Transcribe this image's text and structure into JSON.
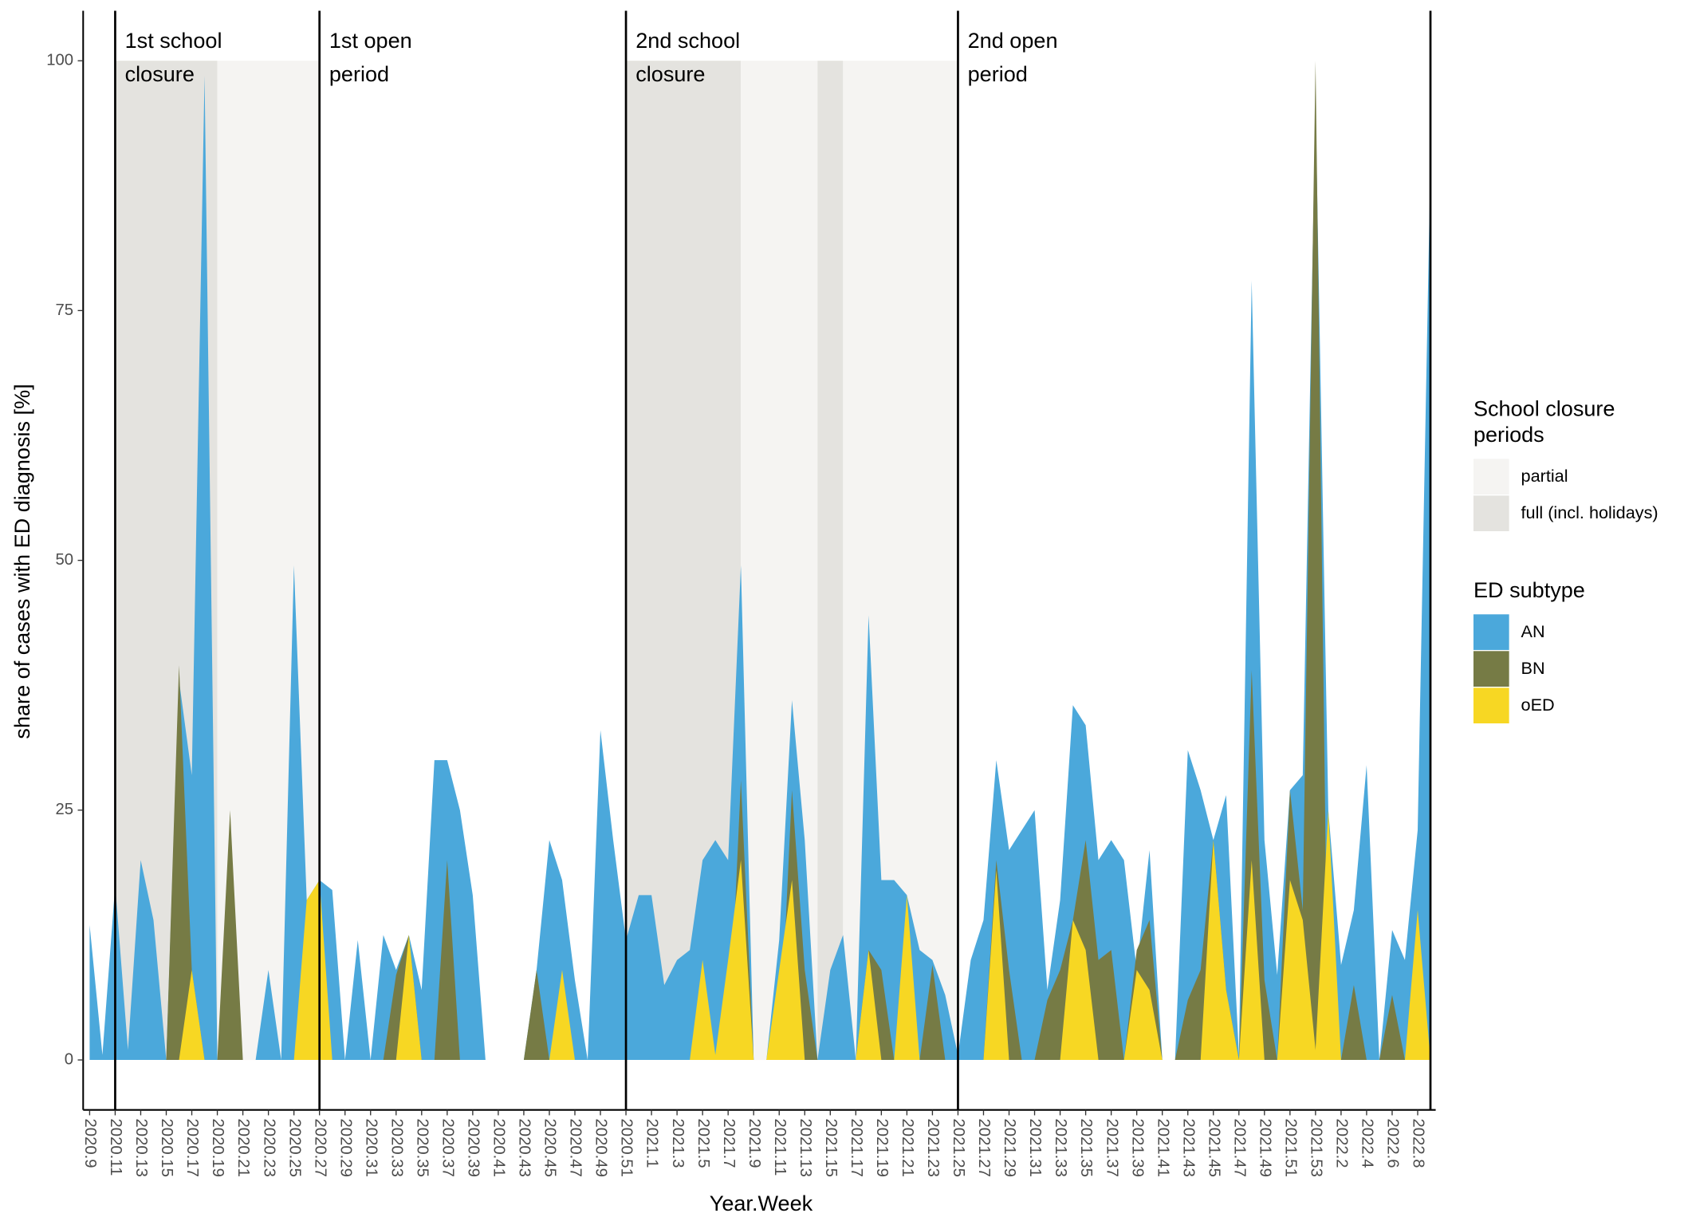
{
  "chart_data": {
    "type": "area",
    "y_label": "share of cases with ED diagnosis [%]",
    "x_label": "Year.Week",
    "categories": [
      "2020.9",
      null,
      "2020.11",
      null,
      "2020.13",
      null,
      "2020.15",
      null,
      "2020.17",
      null,
      "2020.19",
      null,
      "2020.21",
      null,
      "2020.23",
      null,
      "2020.25",
      null,
      "2020.27",
      null,
      "2020.29",
      null,
      "2020.31",
      null,
      "2020.33",
      null,
      "2020.35",
      null,
      "2020.37",
      null,
      "2020.39",
      null,
      "2020.41",
      null,
      "2020.43",
      null,
      "2020.45",
      null,
      "2020.47",
      null,
      "2020.49",
      null,
      "2020.51",
      null,
      "2021.1",
      null,
      "2021.3",
      null,
      "2021.5",
      null,
      "2021.7",
      null,
      "2021.9",
      null,
      "2021.11",
      null,
      "2021.13",
      null,
      "2021.15",
      null,
      "2021.17",
      null,
      "2021.19",
      null,
      "2021.21",
      null,
      "2021.23",
      null,
      "2021.25",
      null,
      "2021.27",
      null,
      "2021.29",
      null,
      "2021.31",
      null,
      "2021.33",
      null,
      "2021.35",
      null,
      "2021.37",
      null,
      "2021.39",
      null,
      "2021.41",
      null,
      "2021.43",
      null,
      "2021.45",
      null,
      "2021.47",
      null,
      "2021.49",
      null,
      "2021.51",
      null,
      "2021.53",
      null,
      "2022.2",
      null,
      "2022.4",
      null,
      "2022.6",
      null,
      "2022.8",
      null
    ],
    "series": [
      {
        "name": "AN",
        "color": "#4ba8db",
        "values": [
          13.5,
          0.5,
          17.5,
          1,
          20,
          14,
          0,
          38,
          28.5,
          98.5,
          0,
          0,
          0,
          0,
          9,
          0,
          49.5,
          16,
          18,
          17,
          0,
          12,
          0,
          12.5,
          9,
          12.5,
          7,
          30,
          30,
          25,
          16.5,
          0,
          0,
          0,
          0,
          9,
          22,
          18,
          8,
          0,
          33,
          22,
          12,
          16.5,
          16.5,
          7.5,
          10,
          11,
          20,
          22,
          20,
          49.5,
          0,
          0,
          12,
          36,
          22,
          0,
          9,
          12.5,
          0,
          44.5,
          18,
          18,
          16.5,
          11,
          10,
          6.5,
          0.5,
          10,
          14,
          30,
          21,
          23,
          25,
          7,
          16,
          35.5,
          33.5,
          20,
          22,
          20,
          9,
          21,
          0,
          0,
          31,
          27,
          22,
          26.5,
          0.5,
          78,
          22,
          8.5,
          27,
          28.5,
          96,
          25,
          9.5,
          15,
          29.5,
          0,
          13,
          10,
          23,
          90
        ]
      },
      {
        "name": "BN",
        "color": "#767b45",
        "values": [
          0,
          0,
          0,
          0,
          0,
          0,
          0,
          39.5,
          9,
          0,
          0,
          25,
          0,
          0,
          0,
          0,
          0,
          0,
          0,
          0,
          0,
          0,
          0,
          0,
          8.5,
          12.5,
          0,
          0,
          20,
          0,
          0,
          0,
          0,
          0,
          0,
          9,
          0,
          0,
          0,
          0,
          0,
          0,
          0,
          0,
          0,
          0,
          0,
          0,
          0,
          0,
          0,
          28,
          0,
          0,
          0,
          27,
          9,
          0,
          0,
          0,
          0,
          11,
          9,
          0,
          0,
          0,
          9.5,
          0,
          0,
          0,
          0,
          20,
          9,
          0,
          0,
          6,
          9,
          14,
          22,
          10,
          11,
          0,
          11,
          14,
          0,
          0,
          6,
          9,
          22,
          7,
          0,
          39,
          8,
          0,
          27,
          15,
          100,
          0,
          0,
          7.5,
          0,
          0,
          6.5,
          0,
          0,
          0
        ]
      },
      {
        "name": "oED",
        "color": "#f7d723",
        "values": [
          0,
          0,
          0,
          0,
          0,
          0,
          0,
          0,
          9,
          0,
          0,
          0,
          0,
          0,
          0,
          0,
          0,
          16,
          18,
          0,
          0,
          0,
          0,
          0,
          0,
          12.5,
          0,
          0,
          0,
          0,
          0,
          0,
          0,
          0,
          0,
          0,
          0,
          9,
          0,
          0,
          0,
          0,
          0,
          0,
          0,
          0,
          0,
          0,
          10,
          0.5,
          10,
          20,
          0,
          0,
          9,
          18,
          0,
          0,
          0,
          0,
          0,
          11,
          0,
          0,
          16.5,
          0,
          0,
          0,
          0,
          0,
          0,
          19,
          0,
          0,
          0,
          0,
          0,
          14,
          11,
          0,
          0,
          0,
          9,
          7,
          0,
          0,
          0,
          0,
          22,
          7,
          0,
          20,
          0,
          0,
          18,
          14,
          1,
          25,
          0,
          0,
          0,
          0,
          0,
          0,
          15,
          0
        ]
      }
    ],
    "ylim": [
      -5,
      105
    ],
    "yticks": [
      0,
      25,
      50,
      75,
      100
    ],
    "periods": [
      {
        "label": [
          "1st school",
          "closure"
        ],
        "at": 2
      },
      {
        "label": [
          "1st open",
          "period"
        ],
        "at": 18
      },
      {
        "label": [
          "2nd school",
          "closure"
        ],
        "at": 42
      },
      {
        "label": [
          "2nd open",
          "period"
        ],
        "at": 68
      }
    ],
    "period_end": 105,
    "shading": [
      {
        "from": 2,
        "to": 10,
        "color": "#e4e3df"
      },
      {
        "from": 10,
        "to": 18,
        "color": "#f5f4f2"
      },
      {
        "from": 42,
        "to": 51,
        "color": "#e4e3df"
      },
      {
        "from": 51,
        "to": 57,
        "color": "#f5f4f2"
      },
      {
        "from": 57,
        "to": 59,
        "color": "#e4e3df"
      },
      {
        "from": 59,
        "to": 68,
        "color": "#f5f4f2"
      }
    ],
    "shading_legend": {
      "title": [
        "School closure",
        "periods"
      ],
      "items": [
        {
          "name": "partial",
          "color": "#f5f4f2"
        },
        {
          "name": "full (incl. holidays)",
          "color": "#e4e3df"
        }
      ]
    },
    "legend_title": "ED subtype"
  }
}
